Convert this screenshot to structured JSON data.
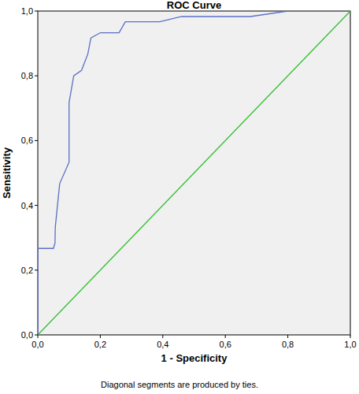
{
  "chart_data": {
    "type": "line",
    "title": "ROC Curve",
    "x_label": "1 - Specificity",
    "y_label": "Sensitivity",
    "footnote": "Diagonal segments are produced by ties.",
    "xlim": [
      0,
      1
    ],
    "ylim": [
      0,
      1
    ],
    "xticks": [
      {
        "value": 0,
        "label": "0,0"
      },
      {
        "value": 0.2,
        "label": "0,2"
      },
      {
        "value": 0.4,
        "label": "0,4"
      },
      {
        "value": 0.6,
        "label": "0,6"
      },
      {
        "value": 0.8,
        "label": "0,8"
      },
      {
        "value": 1,
        "label": "1,0"
      }
    ],
    "yticks": [
      {
        "value": 0,
        "label": "0,0"
      },
      {
        "value": 0.2,
        "label": "0,2"
      },
      {
        "value": 0.4,
        "label": "0,4"
      },
      {
        "value": 0.6,
        "label": "0,6"
      },
      {
        "value": 0.8,
        "label": "0,8"
      },
      {
        "value": 1,
        "label": "1,0"
      }
    ],
    "grid": false,
    "series": [
      {
        "color": "#5b6fc4",
        "x": [
          0,
          0,
          0.05,
          0.055,
          0.056,
          0.07,
          0.1,
          0.1,
          0.115,
          0.14,
          0.16,
          0.17,
          0.2,
          0.26,
          0.28,
          0.39,
          0.46,
          0.68,
          0.8,
          1.0
        ],
        "values": [
          0,
          0.267,
          0.267,
          0.283,
          0.333,
          0.467,
          0.533,
          0.717,
          0.8,
          0.817,
          0.867,
          0.917,
          0.933,
          0.933,
          0.967,
          0.967,
          0.983,
          0.983,
          1.0,
          1.0
        ]
      },
      {
        "color": "#2fbf2f",
        "x": [
          0,
          1
        ],
        "values": [
          0,
          1
        ]
      }
    ]
  }
}
